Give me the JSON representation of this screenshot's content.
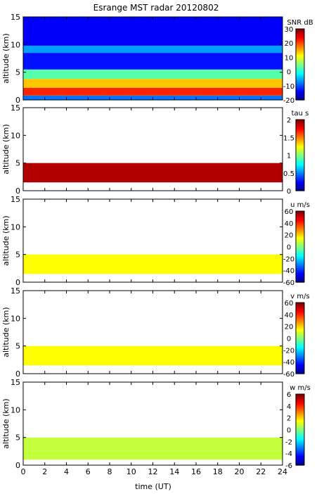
{
  "figure": {
    "title": "Esrange MST radar 20120802",
    "xlabel": "time (UT)"
  },
  "chart_data": [
    {
      "type": "heatmap",
      "ylabel": "altitude (km)",
      "colorbar_label": "SNR dB",
      "xlim": [
        0,
        24
      ],
      "ylim": [
        0,
        15
      ],
      "xticks": [
        "0",
        "2",
        "4",
        "6",
        "8",
        "10",
        "12",
        "14",
        "16",
        "18",
        "20",
        "22",
        "24"
      ],
      "yticks": [
        "0",
        "5",
        "10",
        "15"
      ],
      "clim": [
        -20,
        30
      ],
      "cticks": [
        "30",
        "20",
        "10",
        "0",
        "-10",
        "-20"
      ],
      "layers": [
        {
          "alt": [
            0,
            0.8
          ],
          "v": -8
        },
        {
          "alt": [
            0.8,
            2.2
          ],
          "v": 22
        },
        {
          "alt": [
            2.2,
            3.8
          ],
          "v": 14
        },
        {
          "alt": [
            3.8,
            5.5
          ],
          "v": 3
        },
        {
          "alt": [
            5.5,
            8.5
          ],
          "v": -13
        },
        {
          "alt": [
            8.5,
            9.8
          ],
          "v": -6
        },
        {
          "alt": [
            9.8,
            15
          ],
          "v": -14
        }
      ],
      "colormap": "jet",
      "grid": false
    },
    {
      "type": "heatmap",
      "ylabel": "altitude (km)",
      "colorbar_label": "tau s",
      "xlim": [
        0,
        24
      ],
      "ylim": [
        0,
        15
      ],
      "xticks": [
        "0",
        "2",
        "4",
        "6",
        "8",
        "10",
        "12",
        "14",
        "16",
        "18",
        "20",
        "22",
        "24"
      ],
      "yticks": [
        "0",
        "5",
        "10",
        "15"
      ],
      "clim": [
        0,
        2
      ],
      "cticks": [
        "2",
        "1.5",
        "1",
        "0.5",
        "0"
      ],
      "layers": [
        {
          "alt": [
            1.5,
            5.0
          ],
          "v": 1.9
        }
      ],
      "colormap": "jet-stepped",
      "grid": false
    },
    {
      "type": "heatmap",
      "ylabel": "altitude (km)",
      "colorbar_label": "u m/s",
      "xlim": [
        0,
        24
      ],
      "ylim": [
        0,
        15
      ],
      "xticks": [
        "0",
        "2",
        "4",
        "6",
        "8",
        "10",
        "12",
        "14",
        "16",
        "18",
        "20",
        "22",
        "24"
      ],
      "yticks": [
        "0",
        "5",
        "10",
        "15"
      ],
      "clim": [
        -60,
        60
      ],
      "cticks": [
        "60",
        "40",
        "20",
        "0",
        "-20",
        "-40",
        "-60"
      ],
      "layers": [
        {
          "alt": [
            1.5,
            5.0
          ],
          "v": 15
        }
      ],
      "colormap": "jet",
      "grid": false
    },
    {
      "type": "heatmap",
      "ylabel": "altitude (km)",
      "colorbar_label": "v m/s",
      "xlim": [
        0,
        24
      ],
      "ylim": [
        0,
        15
      ],
      "xticks": [
        "0",
        "2",
        "4",
        "6",
        "8",
        "10",
        "12",
        "14",
        "16",
        "18",
        "20",
        "22",
        "24"
      ],
      "yticks": [
        "0",
        "5",
        "10",
        "15"
      ],
      "clim": [
        -60,
        60
      ],
      "cticks": [
        "60",
        "40",
        "20",
        "0",
        "-20",
        "-40",
        "-60"
      ],
      "layers": [
        {
          "alt": [
            1.5,
            5.0
          ],
          "v": 15
        }
      ],
      "colormap": "jet",
      "grid": false
    },
    {
      "type": "heatmap",
      "ylabel": "altitude (km)",
      "colorbar_label": "w m/s",
      "xlim": [
        0,
        24
      ],
      "ylim": [
        0,
        15
      ],
      "xticks": [
        "0",
        "2",
        "4",
        "6",
        "8",
        "10",
        "12",
        "14",
        "16",
        "18",
        "20",
        "22",
        "24"
      ],
      "yticks": [
        "0",
        "5",
        "10",
        "15"
      ],
      "clim": [
        -6,
        6
      ],
      "cticks": [
        "6",
        "4",
        "2",
        "0",
        "-2",
        "-4",
        "-6"
      ],
      "layers": [
        {
          "alt": [
            1.0,
            5.0
          ],
          "v": 0.8
        }
      ],
      "colormap": "jet",
      "grid": false
    }
  ]
}
